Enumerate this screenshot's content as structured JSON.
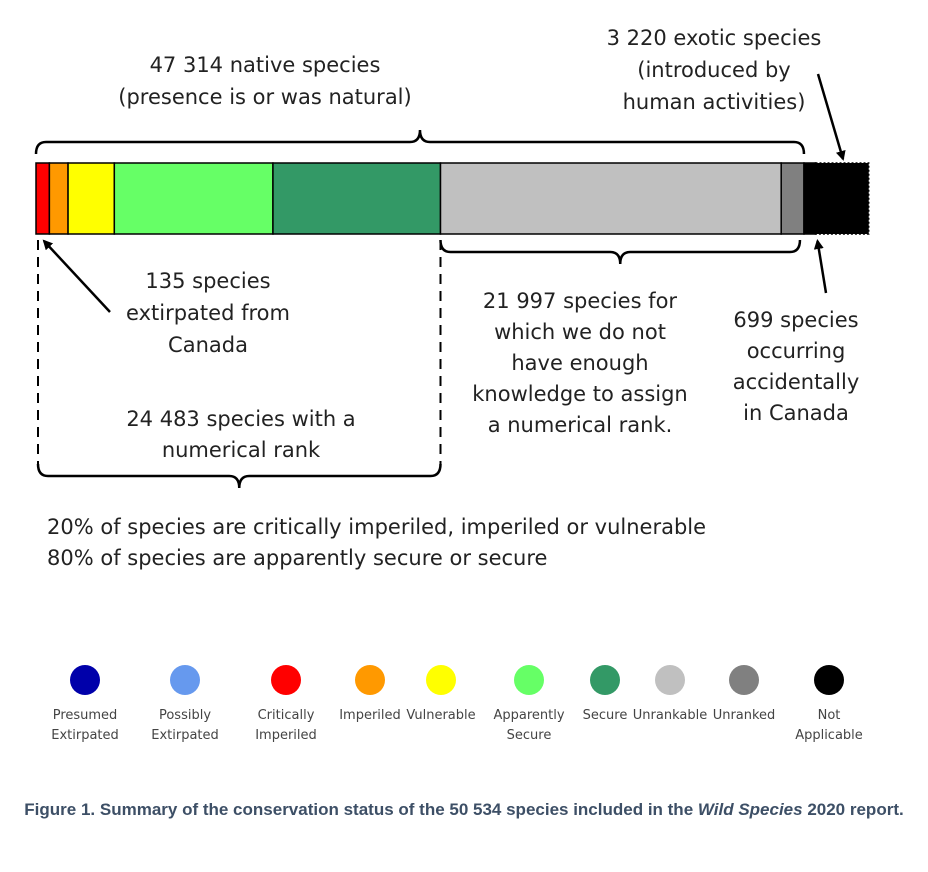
{
  "chart_data": {
    "type": "bar",
    "orientation": "horizontal-stacked",
    "categories": [
      "Presumed Extirpated",
      "Possibly Extirpated",
      "Critically Imperiled",
      "Imperiled",
      "Vulnerable",
      "Apparently Secure",
      "Secure",
      "Unrankable",
      "Unranked",
      "Not Applicable"
    ],
    "segments": [
      {
        "name": "Critically Imperiled",
        "value": 810,
        "color": "#ff0000"
      },
      {
        "name": "Imperiled",
        "value": 1130,
        "color": "#ff9900"
      },
      {
        "name": "Vulnerable",
        "value": 2800,
        "color": "#ffff00"
      },
      {
        "name": "Apparently Secure",
        "value": 9600,
        "color": "#66ff66"
      },
      {
        "name": "Secure",
        "value": 10140,
        "color": "#339966"
      },
      {
        "name": "Unrankable",
        "value": 20620,
        "color": "#c0c0c0"
      },
      {
        "name": "Unranked",
        "value": 1377,
        "color": "#808080"
      },
      {
        "name": "Not Applicable (accidental)",
        "value": 699,
        "color": "#000000"
      },
      {
        "name": "Not Applicable (exotic)",
        "value": 3220,
        "color": "#000000"
      }
    ],
    "total": 50534,
    "annotations": {
      "native": [
        "47 314 native species",
        "(presence is or was natural)"
      ],
      "exotic": [
        "3 220 exotic species",
        "(introduced by",
        "human activities)"
      ],
      "extirpated": [
        "135 species",
        "extirpated from",
        "Canada"
      ],
      "unranked": [
        "21 997 species for",
        "which we do not",
        "have enough",
        "knowledge to assign",
        "a numerical rank."
      ],
      "accidental": [
        "699 species",
        "occurring",
        "accidentally",
        "in Canada"
      ],
      "numerical": [
        "24 483 species with a",
        "numerical rank"
      ]
    },
    "summary": [
      "20% of species are critically imperiled, imperiled or vulnerable",
      "80% of species are apparently secure or secure"
    ],
    "legend": [
      {
        "label": [
          "Presumed",
          "Extirpated"
        ],
        "color": "#0000aa"
      },
      {
        "label": [
          "Possibly",
          "Extirpated"
        ],
        "color": "#6699ee"
      },
      {
        "label": [
          "Critically",
          "Imperiled"
        ],
        "color": "#ff0000"
      },
      {
        "label": [
          "Imperiled"
        ],
        "color": "#ff9900"
      },
      {
        "label": [
          "Vulnerable"
        ],
        "color": "#ffff00"
      },
      {
        "label": [
          "Apparently",
          "Secure"
        ],
        "color": "#66ff66"
      },
      {
        "label": [
          "Secure"
        ],
        "color": "#339966"
      },
      {
        "label": [
          "Unrankable"
        ],
        "color": "#c0c0c0"
      },
      {
        "label": [
          "Unranked"
        ],
        "color": "#808080"
      },
      {
        "label": [
          "Not",
          "Applicable"
        ],
        "color": "#000000"
      }
    ]
  },
  "caption": {
    "before": "Figure 1. Summary of the conservation status of the 50 534 species included in the ",
    "italic": "Wild Species",
    "after": " 2020 report."
  }
}
